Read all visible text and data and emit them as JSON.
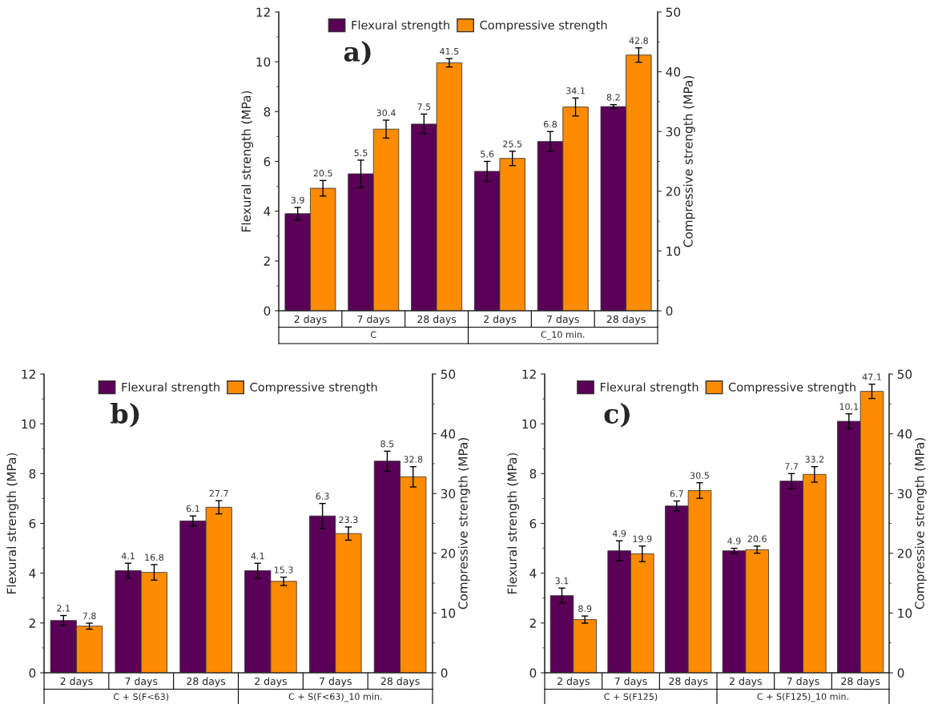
{
  "chart_data": [
    {
      "type": "bar",
      "title": "a)",
      "categories": [
        "2 days",
        "7 days",
        "28 days",
        "2 days",
        "7 days",
        "28 days"
      ],
      "annotations": [
        "C",
        "C_10 min."
      ],
      "ylabel": "Flexural strength (MPa)",
      "y2label": "Compressive strength (MPa)",
      "series": [
        {
          "name": "Flexural strength",
          "color": "#5a0057",
          "values": [
            3.9,
            5.5,
            7.5,
            5.6,
            6.8,
            8.2
          ],
          "errors": [
            0.25,
            0.55,
            0.4,
            0.4,
            0.4,
            0.08
          ]
        },
        {
          "name": "Compressive strength",
          "color": "#ff8c00",
          "axis": "y2",
          "values": [
            20.5,
            30.4,
            41.5,
            25.5,
            34.1,
            42.8
          ],
          "errors": [
            1.3,
            1.5,
            0.7,
            1.2,
            1.5,
            1.2
          ]
        }
      ],
      "ylim": [
        0,
        12
      ],
      "yticks": [
        0,
        {
          "value": 1,
          "label": null
        },
        2,
        {
          "value": 3,
          "label": null
        },
        4,
        {
          "value": 5,
          "label": null
        },
        6,
        {
          "value": 7,
          "label": null
        },
        8,
        {
          "value": 9,
          "label": null
        },
        10,
        {
          "value": 11,
          "label": null
        },
        12
      ],
      "y2lim": [
        0,
        50
      ],
      "y2ticks": [
        0,
        {
          "value": 5,
          "label": null
        },
        10,
        {
          "value": 15,
          "label": null
        },
        20,
        {
          "value": 25,
          "label": null
        },
        30,
        {
          "value": 35,
          "label": null
        },
        40,
        {
          "value": 45,
          "label": null
        },
        50
      ],
      "data_labels": true,
      "legend": "top",
      "grid": false
    },
    {
      "type": "bar",
      "title": "b)",
      "categories": [
        "2 days",
        "7 days",
        "28 days",
        "2 days",
        "7 days",
        "28 days"
      ],
      "annotations": [
        "C + S(F<63)",
        "C + S(F<63)_10 min."
      ],
      "ylabel": "Flexural strength (MPa)",
      "y2label": "Compressive strength (MPa)",
      "series": [
        {
          "name": "Flexural strength",
          "color": "#5a0057",
          "values": [
            2.1,
            4.1,
            6.1,
            4.1,
            6.3,
            8.5
          ],
          "errors": [
            0.2,
            0.3,
            0.2,
            0.3,
            0.5,
            0.4
          ]
        },
        {
          "name": "Compressive strength",
          "color": "#ff8c00",
          "axis": "y2",
          "values": [
            7.8,
            16.8,
            27.7,
            15.3,
            23.3,
            32.8
          ],
          "errors": [
            0.5,
            1.3,
            1.1,
            0.7,
            1.1,
            1.7
          ]
        }
      ],
      "ylim": [
        0,
        12
      ],
      "yticks": [
        0,
        {
          "value": 1,
          "label": null
        },
        2,
        {
          "value": 3,
          "label": null
        },
        4,
        {
          "value": 5,
          "label": null
        },
        6,
        {
          "value": 7,
          "label": null
        },
        8,
        {
          "value": 9,
          "label": null
        },
        10,
        {
          "value": 11,
          "label": null
        },
        12
      ],
      "y2lim": [
        0,
        50
      ],
      "y2ticks": [
        0,
        {
          "value": 5,
          "label": null
        },
        10,
        {
          "value": 15,
          "label": null
        },
        20,
        {
          "value": 25,
          "label": null
        },
        30,
        {
          "value": 35,
          "label": null
        },
        40,
        {
          "value": 45,
          "label": null
        },
        50
      ],
      "data_labels": true,
      "legend": "top",
      "grid": false
    },
    {
      "type": "bar",
      "title": "c)",
      "categories": [
        "2 days",
        "7 days",
        "28 days",
        "2 days",
        "7 days",
        "28 days"
      ],
      "annotations": [
        "C + S(F125)",
        "C + S(F125)_10 min."
      ],
      "ylabel": "Flexural strength (MPa)",
      "y2label": "Compressive strength (MPa)",
      "series": [
        {
          "name": "Flexural strength",
          "color": "#5a0057",
          "values": [
            3.1,
            4.9,
            6.7,
            4.9,
            7.7,
            10.1
          ],
          "errors": [
            0.3,
            0.4,
            0.2,
            0.1,
            0.3,
            0.3
          ]
        },
        {
          "name": "Compressive strength",
          "color": "#ff8c00",
          "axis": "y2",
          "values": [
            8.9,
            19.9,
            30.5,
            20.6,
            33.2,
            47.1
          ],
          "errors": [
            0.6,
            1.3,
            1.3,
            0.6,
            1.3,
            1.2
          ]
        }
      ],
      "ylim": [
        0,
        12
      ],
      "yticks": [
        0,
        {
          "value": 1,
          "label": null
        },
        2,
        {
          "value": 3,
          "label": null
        },
        4,
        {
          "value": 5,
          "label": null
        },
        6,
        {
          "value": 7,
          "label": null
        },
        8,
        {
          "value": 9,
          "label": null
        },
        10,
        {
          "value": 11,
          "label": null
        },
        12
      ],
      "y2lim": [
        0,
        50
      ],
      "y2ticks": [
        0,
        {
          "value": 5,
          "label": null
        },
        10,
        {
          "value": 15,
          "label": null
        },
        20,
        {
          "value": 25,
          "label": null
        },
        30,
        {
          "value": 35,
          "label": null
        },
        40,
        {
          "value": 45,
          "label": null
        },
        50
      ],
      "data_labels": true,
      "legend": "top",
      "grid": false
    }
  ]
}
